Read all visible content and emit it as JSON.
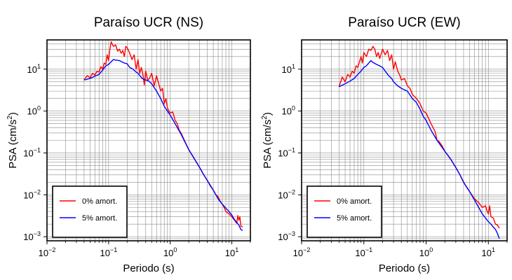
{
  "chart_data": [
    {
      "type": "line",
      "title": "Paraíso UCR (NS)",
      "xlabel": "Periodo (s)",
      "ylabel_main": "PSA (cm/s",
      "ylabel_sup": "2",
      "ylabel_end": ")",
      "x_scale": "log",
      "y_scale": "log",
      "xlim": [
        0.01,
        20
      ],
      "ylim": [
        0.0008,
        50
      ],
      "grid": true,
      "legend_position": "bottom-left",
      "x_ticks": [
        {
          "base": "10",
          "exp": "−2"
        },
        {
          "base": "10",
          "exp": "−1"
        },
        {
          "base": "10",
          "exp": "0"
        },
        {
          "base": "10",
          "exp": "1"
        }
      ],
      "y_ticks": [
        {
          "base": "10",
          "exp": "−3"
        },
        {
          "base": "10",
          "exp": "−2"
        },
        {
          "base": "10",
          "exp": "−1"
        },
        {
          "base": "10",
          "exp": "0"
        },
        {
          "base": "10",
          "exp": "1"
        }
      ],
      "series": [
        {
          "name": "0% amort.",
          "color": "#ff0000",
          "points": [
            [
              0.04,
              5.6
            ],
            [
              0.045,
              7.0
            ],
            [
              0.05,
              6.2
            ],
            [
              0.055,
              8.0
            ],
            [
              0.06,
              7.2
            ],
            [
              0.065,
              9.0
            ],
            [
              0.07,
              8.5
            ],
            [
              0.075,
              11.5
            ],
            [
              0.08,
              10.0
            ],
            [
              0.085,
              14.0
            ],
            [
              0.09,
              13.0
            ],
            [
              0.095,
              22.0
            ],
            [
              0.1,
              16.0
            ],
            [
              0.105,
              30.0
            ],
            [
              0.11,
              45.0
            ],
            [
              0.12,
              35.0
            ],
            [
              0.13,
              38.0
            ],
            [
              0.14,
              27.0
            ],
            [
              0.15,
              30.0
            ],
            [
              0.16,
              24.0
            ],
            [
              0.17,
              28.0
            ],
            [
              0.18,
              20.0
            ],
            [
              0.19,
              35.0
            ],
            [
              0.2,
              33.0
            ],
            [
              0.22,
              24.0
            ],
            [
              0.24,
              17.0
            ],
            [
              0.26,
              22.0
            ],
            [
              0.28,
              10.0
            ],
            [
              0.3,
              17.0
            ],
            [
              0.32,
              8.0
            ],
            [
              0.34,
              11.0
            ],
            [
              0.36,
              7.5
            ],
            [
              0.38,
              4.2
            ],
            [
              0.4,
              9.0
            ],
            [
              0.43,
              5.5
            ],
            [
              0.46,
              6.0
            ],
            [
              0.5,
              8.0
            ],
            [
              0.55,
              4.0
            ],
            [
              0.6,
              7.0
            ],
            [
              0.65,
              4.5
            ],
            [
              0.7,
              3.0
            ],
            [
              0.75,
              3.5
            ],
            [
              0.8,
              1.5
            ],
            [
              0.85,
              2.0
            ],
            [
              0.9,
              1.2
            ],
            [
              0.95,
              1.0
            ],
            [
              1.0,
              0.9
            ],
            [
              1.1,
              0.95
            ],
            [
              1.2,
              0.6
            ],
            [
              1.3,
              0.5
            ],
            [
              1.4,
              0.35
            ],
            [
              1.5,
              0.3
            ],
            [
              1.7,
              0.2
            ],
            [
              2.0,
              0.12
            ],
            [
              2.5,
              0.07
            ],
            [
              3.0,
              0.045
            ],
            [
              3.5,
              0.03
            ],
            [
              4.0,
              0.022
            ],
            [
              4.5,
              0.016
            ],
            [
              5.0,
              0.013
            ],
            [
              5.5,
              0.01
            ],
            [
              6.0,
              0.009
            ],
            [
              6.5,
              0.007
            ],
            [
              7.0,
              0.006
            ],
            [
              7.5,
              0.005
            ],
            [
              8.0,
              0.004
            ],
            [
              9.0,
              0.0035
            ],
            [
              10.0,
              0.003
            ],
            [
              11.0,
              0.0025
            ],
            [
              12.0,
              0.0021
            ],
            [
              12.5,
              0.0032
            ],
            [
              13.0,
              0.0025
            ],
            [
              13.5,
              0.003
            ],
            [
              14.0,
              0.0018
            ],
            [
              15.0,
              0.0017
            ]
          ]
        },
        {
          "name": "5% amort.",
          "color": "#0000ff",
          "points": [
            [
              0.04,
              5.5
            ],
            [
              0.05,
              6.0
            ],
            [
              0.06,
              6.8
            ],
            [
              0.07,
              7.5
            ],
            [
              0.08,
              9.5
            ],
            [
              0.09,
              12.0
            ],
            [
              0.1,
              13.0
            ],
            [
              0.11,
              15.0
            ],
            [
              0.12,
              17.0
            ],
            [
              0.13,
              16.5
            ],
            [
              0.15,
              16.0
            ],
            [
              0.18,
              14.0
            ],
            [
              0.2,
              13.5
            ],
            [
              0.22,
              11.0
            ],
            [
              0.25,
              10.0
            ],
            [
              0.28,
              8.5
            ],
            [
              0.3,
              8.0
            ],
            [
              0.35,
              6.0
            ],
            [
              0.4,
              5.5
            ],
            [
              0.45,
              5.2
            ],
            [
              0.5,
              4.5
            ],
            [
              0.6,
              3.0
            ],
            [
              0.7,
              2.0
            ],
            [
              0.8,
              1.3
            ],
            [
              0.9,
              1.0
            ],
            [
              1.0,
              0.8
            ],
            [
              1.2,
              0.5
            ],
            [
              1.5,
              0.28
            ],
            [
              2.0,
              0.12
            ],
            [
              2.5,
              0.07
            ],
            [
              3.0,
              0.045
            ],
            [
              3.5,
              0.03
            ],
            [
              4.0,
              0.022
            ],
            [
              5.0,
              0.013
            ],
            [
              6.0,
              0.008
            ],
            [
              7.0,
              0.006
            ],
            [
              8.0,
              0.0048
            ],
            [
              9.0,
              0.004
            ],
            [
              10.0,
              0.0033
            ],
            [
              11.0,
              0.0026
            ],
            [
              12.0,
              0.0022
            ],
            [
              13.0,
              0.0019
            ],
            [
              14.0,
              0.0015
            ],
            [
              15.0,
              0.0014
            ]
          ]
        }
      ]
    },
    {
      "type": "line",
      "title": "Paraíso UCR (EW)",
      "xlabel": "Periodo (s)",
      "ylabel_main": "PSA (cm/s",
      "ylabel_sup": "2",
      "ylabel_end": ")",
      "x_scale": "log",
      "y_scale": "log",
      "xlim": [
        0.01,
        20
      ],
      "ylim": [
        0.0008,
        50
      ],
      "grid": true,
      "legend_position": "bottom-left",
      "x_ticks": [
        {
          "base": "10",
          "exp": "−2"
        },
        {
          "base": "10",
          "exp": "−1"
        },
        {
          "base": "10",
          "exp": "0"
        },
        {
          "base": "10",
          "exp": "1"
        }
      ],
      "y_ticks": [
        {
          "base": "10",
          "exp": "−3"
        },
        {
          "base": "10",
          "exp": "−2"
        },
        {
          "base": "10",
          "exp": "−1"
        },
        {
          "base": "10",
          "exp": "0"
        },
        {
          "base": "10",
          "exp": "1"
        }
      ],
      "series": [
        {
          "name": "0% amort.",
          "color": "#ff0000",
          "points": [
            [
              0.04,
              3.8
            ],
            [
              0.045,
              6.5
            ],
            [
              0.05,
              5.0
            ],
            [
              0.055,
              7.5
            ],
            [
              0.06,
              6.5
            ],
            [
              0.065,
              9.0
            ],
            [
              0.07,
              8.0
            ],
            [
              0.075,
              12.0
            ],
            [
              0.08,
              11.0
            ],
            [
              0.085,
              15.0
            ],
            [
              0.09,
              20.0
            ],
            [
              0.095,
              14.0
            ],
            [
              0.1,
              25.0
            ],
            [
              0.11,
              20.0
            ],
            [
              0.12,
              30.0
            ],
            [
              0.13,
              28.0
            ],
            [
              0.14,
              35.0
            ],
            [
              0.15,
              30.0
            ],
            [
              0.16,
              20.0
            ],
            [
              0.17,
              25.0
            ],
            [
              0.18,
              18.0
            ],
            [
              0.2,
              30.0
            ],
            [
              0.22,
              22.0
            ],
            [
              0.24,
              28.0
            ],
            [
              0.26,
              16.0
            ],
            [
              0.28,
              22.0
            ],
            [
              0.3,
              10.0
            ],
            [
              0.32,
              15.0
            ],
            [
              0.35,
              9.0
            ],
            [
              0.38,
              7.0
            ],
            [
              0.4,
              5.5
            ],
            [
              0.45,
              6.0
            ],
            [
              0.5,
              4.0
            ],
            [
              0.55,
              3.5
            ],
            [
              0.6,
              2.5
            ],
            [
              0.7,
              2.0
            ],
            [
              0.8,
              1.5
            ],
            [
              0.9,
              1.0
            ],
            [
              1.0,
              0.9
            ],
            [
              1.2,
              0.5
            ],
            [
              1.4,
              0.32
            ],
            [
              1.5,
              0.2
            ],
            [
              1.6,
              0.19
            ],
            [
              1.8,
              0.15
            ],
            [
              2.0,
              0.11
            ],
            [
              2.5,
              0.07
            ],
            [
              3.0,
              0.045
            ],
            [
              3.5,
              0.03
            ],
            [
              4.0,
              0.02
            ],
            [
              4.5,
              0.015
            ],
            [
              5.0,
              0.012
            ],
            [
              6.0,
              0.008
            ],
            [
              7.0,
              0.0065
            ],
            [
              8.0,
              0.005
            ],
            [
              9.0,
              0.0055
            ],
            [
              9.5,
              0.0042
            ],
            [
              10.0,
              0.0035
            ],
            [
              10.5,
              0.0055
            ],
            [
              11.0,
              0.003
            ],
            [
              12.0,
              0.0028
            ],
            [
              13.0,
              0.002
            ],
            [
              14.0,
              0.0019
            ],
            [
              15.0,
              0.0016
            ]
          ]
        },
        {
          "name": "5% amort.",
          "color": "#0000ff",
          "points": [
            [
              0.04,
              3.8
            ],
            [
              0.05,
              4.5
            ],
            [
              0.06,
              5.2
            ],
            [
              0.07,
              6.0
            ],
            [
              0.08,
              7.5
            ],
            [
              0.09,
              9.0
            ],
            [
              0.1,
              11.0
            ],
            [
              0.11,
              12.0
            ],
            [
              0.12,
              14.0
            ],
            [
              0.13,
              16.0
            ],
            [
              0.14,
              14.5
            ],
            [
              0.16,
              13.0
            ],
            [
              0.18,
              12.0
            ],
            [
              0.2,
              11.0
            ],
            [
              0.22,
              9.0
            ],
            [
              0.25,
              7.0
            ],
            [
              0.28,
              6.0
            ],
            [
              0.3,
              5.0
            ],
            [
              0.35,
              4.0
            ],
            [
              0.4,
              3.5
            ],
            [
              0.45,
              3.2
            ],
            [
              0.5,
              3.0
            ],
            [
              0.6,
              2.0
            ],
            [
              0.7,
              1.6
            ],
            [
              0.8,
              1.1
            ],
            [
              0.9,
              0.75
            ],
            [
              1.0,
              0.6
            ],
            [
              1.2,
              0.35
            ],
            [
              1.5,
              0.2
            ],
            [
              2.0,
              0.11
            ],
            [
              2.5,
              0.07
            ],
            [
              3.0,
              0.045
            ],
            [
              3.5,
              0.03
            ],
            [
              4.0,
              0.02
            ],
            [
              5.0,
              0.012
            ],
            [
              6.0,
              0.0075
            ],
            [
              7.0,
              0.005
            ],
            [
              8.0,
              0.0035
            ],
            [
              9.0,
              0.0028
            ],
            [
              10.0,
              0.0023
            ],
            [
              11.0,
              0.002
            ],
            [
              12.0,
              0.0017
            ],
            [
              13.0,
              0.0015
            ],
            [
              14.0,
              0.0012
            ],
            [
              15.0,
              0.0009
            ]
          ]
        }
      ]
    }
  ]
}
